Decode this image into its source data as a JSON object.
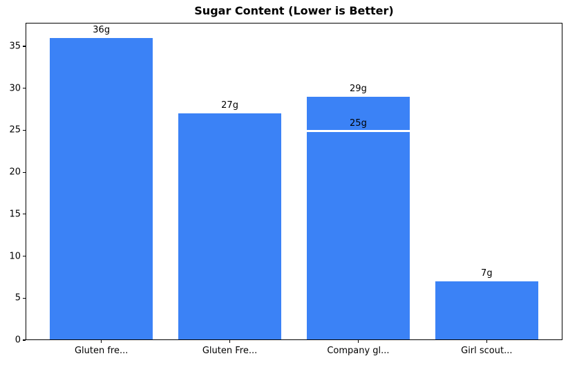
{
  "title": "Sugar Content (Lower is Better)",
  "chart_data": {
    "type": "bar",
    "title": "Sugar Content (Lower is Better)",
    "categories": [
      "Gluten fre...",
      "Gluten Fre...",
      "Company gl...",
      "Girl scout..."
    ],
    "values": [
      36,
      27,
      29,
      7
    ],
    "bar_labels": [
      "36g",
      "27g",
      "29g",
      "7g"
    ],
    "annotations": [
      {
        "category_index": 2,
        "value": 25,
        "label": "25g",
        "style": "white-line-marker"
      }
    ],
    "xlabel": "",
    "ylabel": "",
    "yticks": [
      0,
      5,
      10,
      15,
      20,
      25,
      30,
      35
    ],
    "ylim": [
      0,
      37.8
    ],
    "bar_color": "#3b82f6",
    "grid": false,
    "legend": null,
    "background": "#ffffff"
  }
}
